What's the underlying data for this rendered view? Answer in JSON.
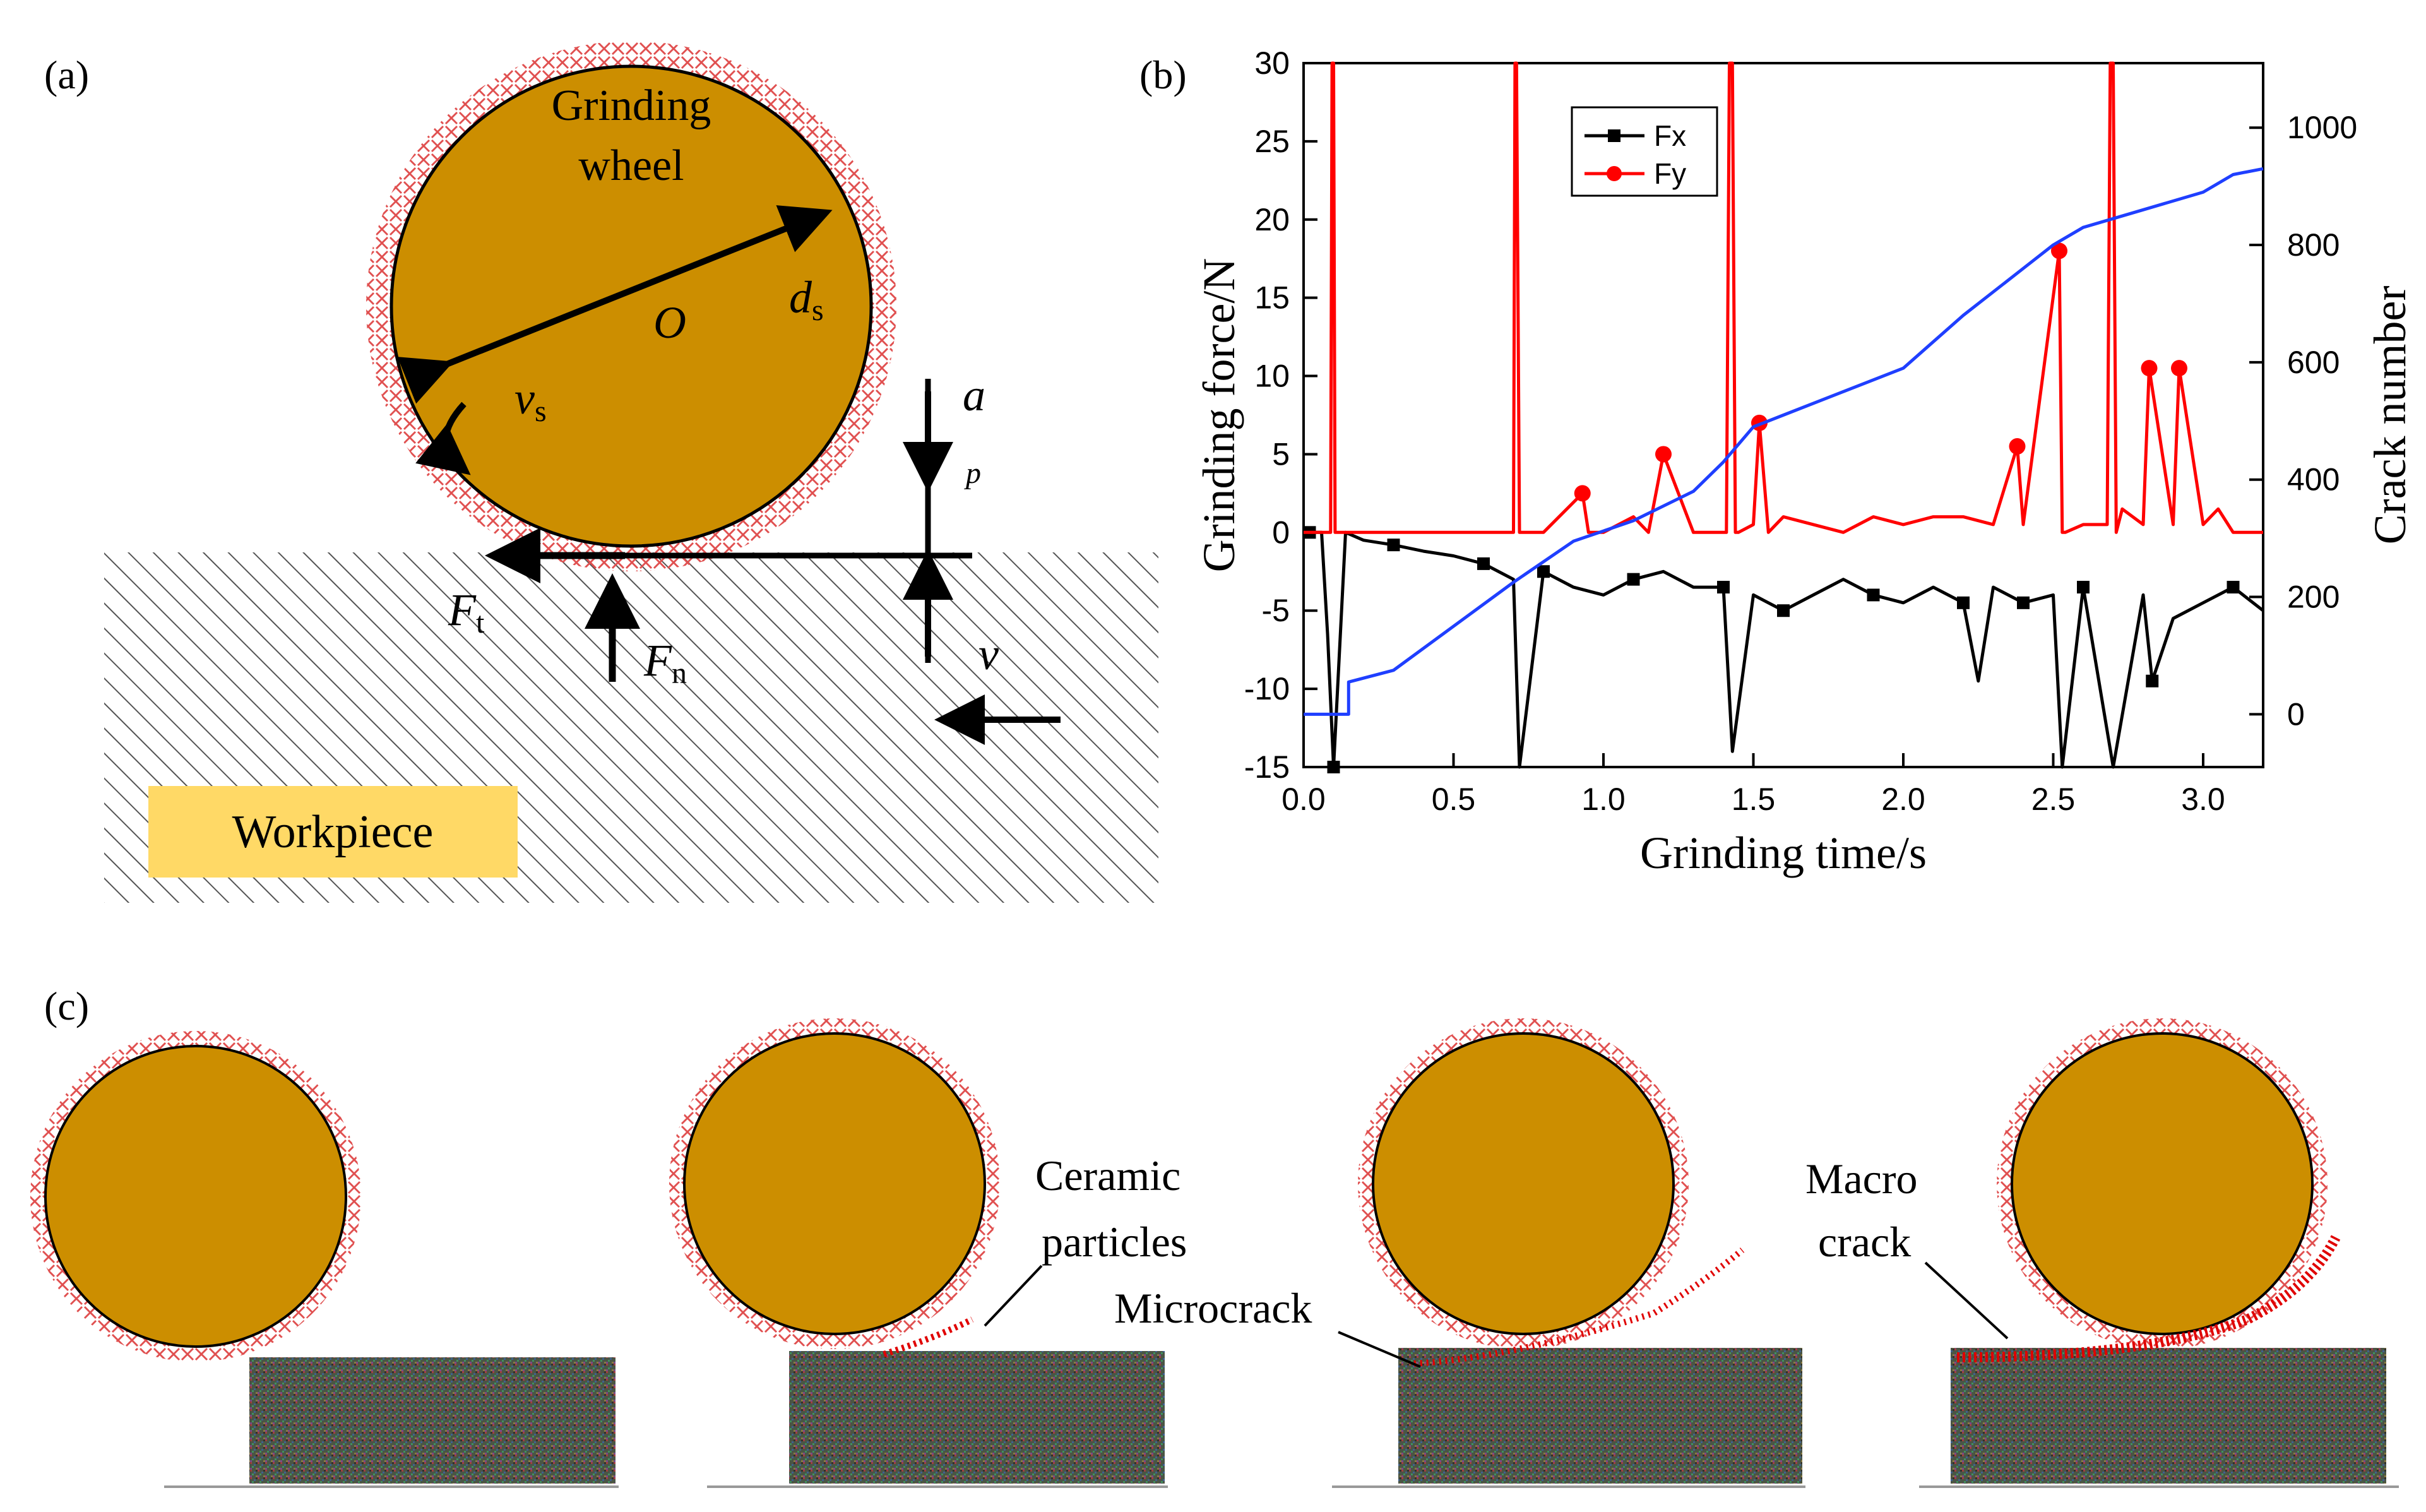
{
  "panels": {
    "a": {
      "tag": "(a)",
      "wheel_line1": "Grinding",
      "wheel_line2": "wheel",
      "center": "O",
      "diameter": "d",
      "diameter_sub": "s",
      "speed": "v",
      "speed_sub": "s",
      "depth": "a",
      "depth_sub": "p",
      "feed": "v",
      "tangential_force": "F",
      "tangential_sub": "t",
      "normal_force": "F",
      "normal_sub": "n",
      "workpiece": "Workpiece"
    },
    "b": {
      "tag": "(b)"
    },
    "c": {
      "tag": "(c)",
      "ceramic_line1": "Ceramic",
      "ceramic_line2": "particles",
      "microcrack": "Microcrack",
      "macro_line1": "Macro",
      "macro_line2": "crack"
    }
  },
  "colors": {
    "wheel": "#CC8E00",
    "abrasive": "#E05050",
    "fx": "#000000",
    "fy": "#FF0000",
    "crack": "#1F3FFF",
    "workpiece_label_bg": "#FFD966"
  },
  "chart_data": {
    "type": "line",
    "xlabel": "Grinding time/s",
    "ylabel": "Grinding force/N",
    "y2label": "Crack number",
    "xlim": [
      0,
      3.2
    ],
    "ylim": [
      -15,
      30
    ],
    "y2lim": [
      -90,
      1110
    ],
    "xticks": [
      "0.0",
      "0.5",
      "1.0",
      "1.5",
      "2.0",
      "2.5",
      "3.0"
    ],
    "yticks": [
      "-15",
      "-10",
      "-5",
      "0",
      "5",
      "10",
      "15",
      "20",
      "25",
      "30"
    ],
    "y2ticks": [
      "0",
      "200",
      "400",
      "600",
      "800",
      "1000"
    ],
    "legend_position": "top-left",
    "series": [
      {
        "name": "Fx",
        "axis": "left",
        "x": [
          0.02,
          0.06,
          0.08,
          0.1,
          0.14,
          0.2,
          0.3,
          0.4,
          0.5,
          0.6,
          0.7,
          0.72,
          0.8,
          0.9,
          1.0,
          1.1,
          1.2,
          1.3,
          1.4,
          1.43,
          1.5,
          1.6,
          1.7,
          1.8,
          1.9,
          2.0,
          2.1,
          2.2,
          2.25,
          2.3,
          2.4,
          2.5,
          2.53,
          2.6,
          2.7,
          2.8,
          2.83,
          2.9,
          3.0,
          3.1,
          3.2
        ],
        "values": [
          0,
          0,
          -6.5,
          -15,
          0,
          -0.5,
          -0.8,
          -1.2,
          -1.5,
          -2,
          -3,
          -15,
          -2.5,
          -3.5,
          -4,
          -3,
          -2.5,
          -3.5,
          -3.5,
          -14,
          -4,
          -5,
          -4,
          -3,
          -4,
          -4.5,
          -3.5,
          -4.5,
          -9.5,
          -3.5,
          -4.5,
          -4,
          -15,
          -3.5,
          -15,
          -4,
          -9.5,
          -5.5,
          -4.5,
          -3.5,
          -5
        ]
      },
      {
        "name": "Fy",
        "axis": "left",
        "x": [
          0.0,
          0.09,
          0.095,
          0.1,
          0.105,
          0.11,
          0.2,
          0.4,
          0.6,
          0.7,
          0.705,
          0.71,
          0.72,
          0.73,
          0.8,
          0.93,
          0.95,
          1.0,
          1.1,
          1.15,
          1.2,
          1.3,
          1.41,
          1.42,
          1.43,
          1.44,
          1.45,
          1.5,
          1.52,
          1.55,
          1.6,
          1.7,
          1.8,
          1.9,
          2.0,
          2.1,
          2.2,
          2.3,
          2.38,
          2.4,
          2.52,
          2.53,
          2.54,
          2.6,
          2.68,
          2.69,
          2.7,
          2.71,
          2.73,
          2.8,
          2.82,
          2.9,
          2.92,
          3.0,
          3.05,
          3.1,
          3.2
        ],
        "values": [
          0,
          0,
          30,
          30,
          0,
          0,
          0,
          0,
          0,
          0,
          30,
          30,
          0,
          0,
          0,
          2.5,
          0,
          0,
          1,
          0,
          5,
          0,
          0,
          30,
          30,
          0,
          0,
          0.5,
          7,
          0,
          1,
          0.5,
          0,
          1,
          0.5,
          1,
          1,
          0.5,
          5.5,
          0.5,
          18,
          0,
          0,
          0.5,
          0.5,
          30,
          30,
          0,
          1.5,
          0.5,
          10.5,
          0.5,
          10.5,
          0.5,
          1.5,
          0,
          0
        ]
      },
      {
        "name": "Crack number",
        "axis": "right",
        "x": [
          0.0,
          0.15,
          0.15,
          0.3,
          0.5,
          0.7,
          0.9,
          1.1,
          1.3,
          1.4,
          1.5,
          1.6,
          1.8,
          2.0,
          2.2,
          2.4,
          2.5,
          2.6,
          2.8,
          3.0,
          3.1,
          3.2
        ],
        "values": [
          0,
          0,
          55,
          75,
          150,
          225,
          295,
          330,
          380,
          430,
          490,
          510,
          550,
          590,
          680,
          760,
          800,
          830,
          860,
          890,
          920,
          930
        ]
      }
    ]
  }
}
